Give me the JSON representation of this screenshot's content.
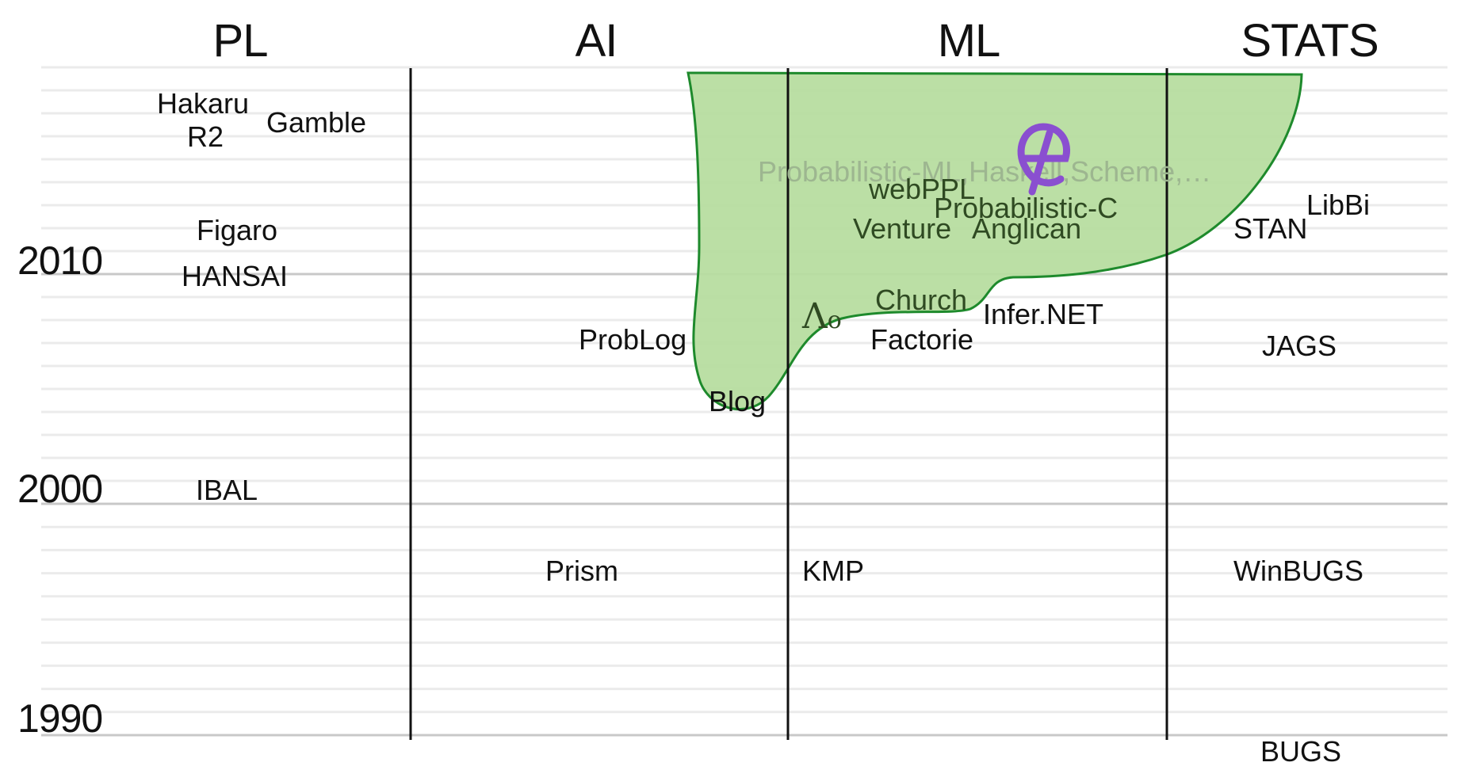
{
  "columns": [
    {
      "id": "pl",
      "label": "PL"
    },
    {
      "id": "ai",
      "label": "AI"
    },
    {
      "id": "ml",
      "label": "ML"
    },
    {
      "id": "stats",
      "label": "STATS"
    }
  ],
  "years": {
    "y2010": "2010",
    "y2000": "2000",
    "y1990": "1990"
  },
  "systems": {
    "hakaru": "Hakaru",
    "r2": "R2",
    "gamble": "Gamble",
    "figaro": "Figaro",
    "hansai": "HANSAI",
    "ibal": "IBAL",
    "problog": "ProbLog",
    "prism": "Prism",
    "blog": "Blog",
    "kmp": "KMP",
    "webppl": "webPPL",
    "probabilistic_c": "Probabilistic-C",
    "venture": "Venture",
    "anglican": "Anglican",
    "church": "Church",
    "infer_net": "Infer.NET",
    "factorie": "Factorie",
    "stan": "STAN",
    "libbi": "LibBi",
    "jags": "JAGS",
    "winbugs": "WinBUGS",
    "bugs": "BUGS",
    "probabilistic_ml": "Probabilistic-ML,Haskell,Scheme,…"
  },
  "glyphs": {
    "lambda": "Λ",
    "lambda_sub": "o"
  },
  "colors": {
    "region_fill": "#b7dda0",
    "region_stroke": "#1e8a2c",
    "logo": "#8a4fd0",
    "gridline": "#ebebeb",
    "decade_line": "#c8c8c8",
    "divider": "#111111"
  },
  "icons": {
    "logo": "purple-ae-logo-icon"
  }
}
